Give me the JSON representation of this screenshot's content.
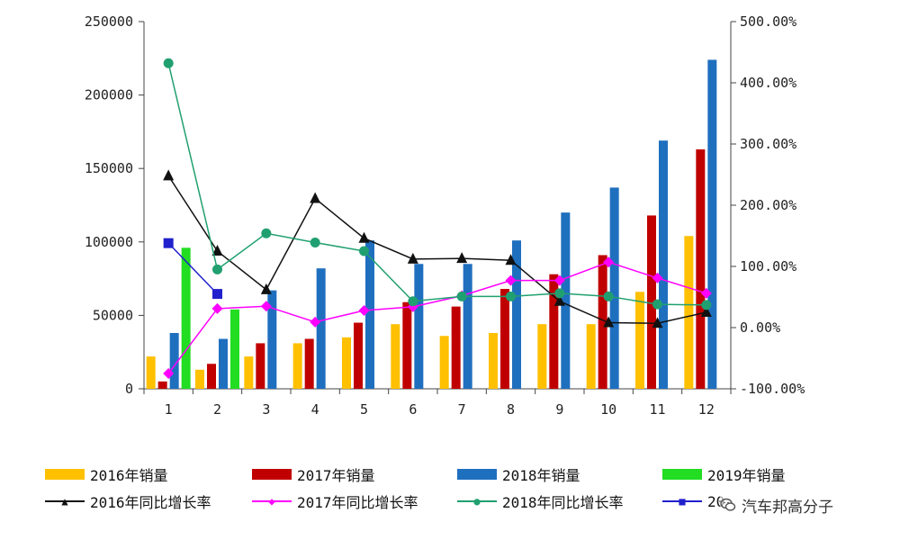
{
  "chart_data": {
    "type": "bar",
    "categories": [
      "1",
      "2",
      "3",
      "4",
      "5",
      "6",
      "7",
      "8",
      "9",
      "10",
      "11",
      "12"
    ],
    "y_left": {
      "min": 0,
      "max": 250000,
      "ticks": [
        "0",
        "50000",
        "100000",
        "150000",
        "200000",
        "250000"
      ]
    },
    "y_right": {
      "min": -100,
      "max": 500,
      "ticks": [
        "-100.00%",
        "0.00%",
        "100.00%",
        "200.00%",
        "300.00%",
        "400.00%",
        "500.00%"
      ]
    },
    "bar_series": [
      {
        "name": "2016年销量",
        "color": "#FFC000",
        "values": [
          22000,
          13000,
          22000,
          31000,
          35000,
          44000,
          36000,
          38000,
          44000,
          44000,
          66000,
          104000
        ]
      },
      {
        "name": "2017年销量",
        "color": "#C00000",
        "values": [
          5000,
          17000,
          31000,
          34000,
          45000,
          59000,
          56000,
          68000,
          78000,
          91000,
          118000,
          163000
        ]
      },
      {
        "name": "2018年销量",
        "color": "#1F6FBF",
        "values": [
          38000,
          34000,
          67000,
          82000,
          101000,
          85000,
          85000,
          101000,
          120000,
          137000,
          169000,
          224000
        ]
      },
      {
        "name": "2019年销量",
        "color": "#22DD22",
        "values": [
          96000,
          54000,
          null,
          null,
          null,
          null,
          null,
          null,
          null,
          null,
          null,
          null
        ]
      }
    ],
    "line_series": [
      {
        "name": "2016年同比增长率",
        "color": "#111111",
        "marker": "triangle",
        "values": [
          248,
          125,
          62,
          211,
          146,
          112,
          113,
          110,
          43,
          8,
          7,
          25
        ]
      },
      {
        "name": "2017年同比增长率",
        "color": "#FF00FF",
        "marker": "diamond",
        "values": [
          -75,
          31,
          35,
          9,
          28,
          34,
          52,
          77,
          77,
          107,
          81,
          56
        ]
      },
      {
        "name": "2018年同比增长率",
        "color": "#20A070",
        "marker": "circle",
        "values": [
          432,
          95,
          154,
          139,
          125,
          43,
          51,
          51,
          56,
          51,
          38,
          37
        ]
      },
      {
        "name": "2019年同比增长率",
        "color": "#2020CC",
        "marker": "square",
        "values": [
          138,
          55,
          null,
          null,
          null,
          null,
          null,
          null,
          null,
          null,
          null,
          null
        ]
      }
    ]
  },
  "legend": {
    "row1": [
      "2016年销量",
      "2017年销量",
      "2018年销量",
      "2019年销量"
    ],
    "row2": [
      "2016年同比增长率",
      "2017年同比增长率",
      "2018年同比增长率",
      "20"
    ]
  },
  "watermark": {
    "text": "汽车邦高分子",
    "icon": "wechat-icon"
  }
}
